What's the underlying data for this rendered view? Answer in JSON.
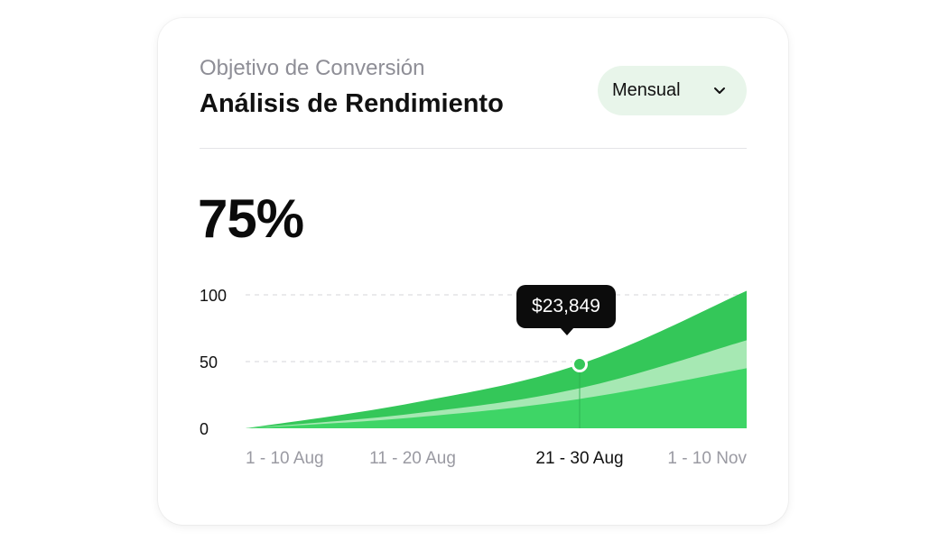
{
  "header": {
    "subtitle": "Objetivo de Conversión",
    "title": "Análisis de Rendimiento"
  },
  "period_select": {
    "selected": "Mensual",
    "icon": "chevron-down-icon"
  },
  "summary": {
    "value": "75%"
  },
  "tooltip": {
    "value": "$23,849"
  },
  "colors": {
    "dark_green": "#34c759",
    "mid_green": "#3ed566",
    "light_green": "#a6e8b3",
    "dropdown_bg": "#e8f5ea",
    "tooltip_bg": "#0c0c0c"
  },
  "chart_data": {
    "type": "area",
    "title": "",
    "xlabel": "",
    "ylabel": "",
    "ylim": [
      0,
      100
    ],
    "y_ticks": [
      0,
      50,
      100
    ],
    "grid": true,
    "categories": [
      "1 - 10 Aug",
      "11 - 20 Aug",
      "21 - 30 Aug",
      "1 - 10 Nov"
    ],
    "highlighted_category": "21 - 30 Aug",
    "x": [
      0,
      1,
      2,
      3
    ],
    "series": [
      {
        "values": [
          0,
          8,
          22,
          45
        ],
        "color": "#3ed566"
      },
      {
        "values": [
          0,
          11,
          30,
          66
        ],
        "color": "#a6e8b3"
      },
      {
        "values": [
          0,
          19,
          48,
          103
        ],
        "color": "#34c759"
      }
    ],
    "highlight_point": {
      "x": 2,
      "y": 48
    }
  }
}
